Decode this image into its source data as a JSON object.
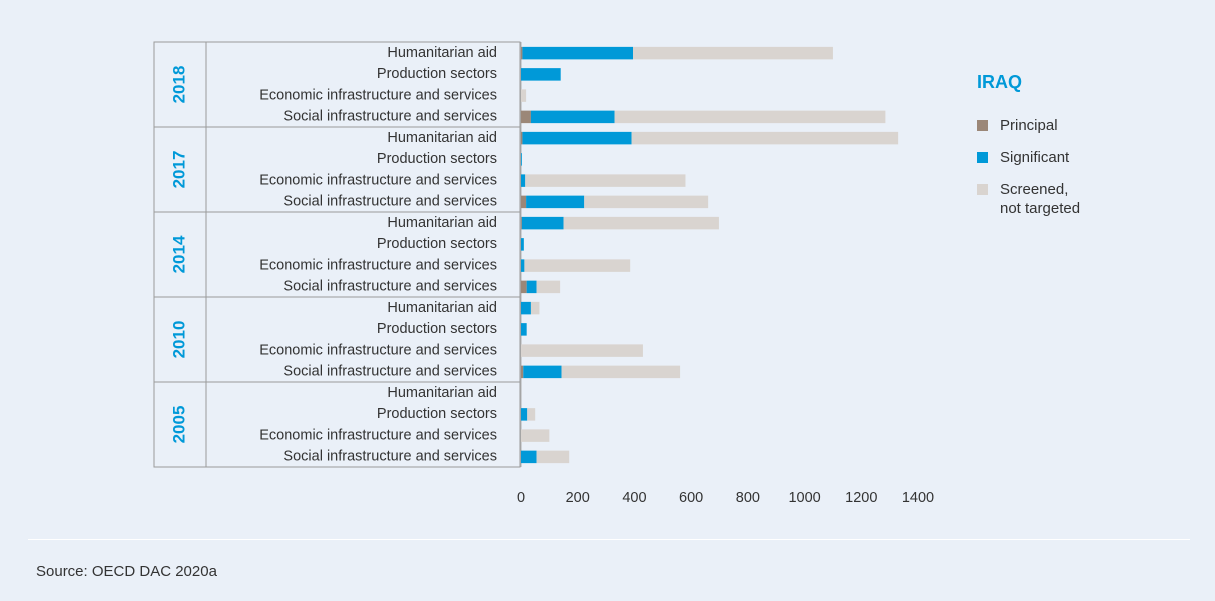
{
  "chart_data": {
    "type": "bar",
    "stacked": true,
    "orientation": "horizontal",
    "title": "IRAQ",
    "xlim": [
      0,
      1400
    ],
    "x_ticks": [
      "0",
      "200",
      "400",
      "600",
      "800",
      "1000",
      "1200",
      "1400"
    ],
    "legend_position": "right",
    "series": [
      {
        "name": "Principal",
        "color": "#9b8778"
      },
      {
        "name": "Significant",
        "color": "#0099d8"
      },
      {
        "name": "Screened,\nnot targeted",
        "color": "#d9d4d0"
      }
    ],
    "groups": [
      {
        "year": "2018",
        "rows": [
          {
            "label": "Humanitarian aid",
            "values": [
              5,
              390,
              705
            ]
          },
          {
            "label": "Production sectors",
            "values": [
              0,
              140,
              0
            ]
          },
          {
            "label": "Economic infrastructure and services",
            "values": [
              0,
              0,
              18
            ]
          },
          {
            "label": "Social infrastructure and services",
            "values": [
              35,
              295,
              955
            ]
          }
        ]
      },
      {
        "year": "2017",
        "rows": [
          {
            "label": "Humanitarian aid",
            "values": [
              5,
              385,
              940
            ]
          },
          {
            "label": "Production sectors",
            "values": [
              0,
              3,
              0
            ]
          },
          {
            "label": "Economic infrastructure and services",
            "values": [
              0,
              15,
              565
            ]
          },
          {
            "label": "Social infrastructure and services",
            "values": [
              18,
              205,
              437
            ]
          }
        ]
      },
      {
        "year": "2014",
        "rows": [
          {
            "label": "Humanitarian aid",
            "values": [
              3,
              147,
              548
            ]
          },
          {
            "label": "Production sectors",
            "values": [
              0,
              10,
              0
            ]
          },
          {
            "label": "Economic infrastructure and services",
            "values": [
              0,
              12,
              373
            ]
          },
          {
            "label": "Social infrastructure and services",
            "values": [
              20,
              35,
              83
            ]
          }
        ]
      },
      {
        "year": "2010",
        "rows": [
          {
            "label": "Humanitarian aid",
            "values": [
              0,
              35,
              30
            ]
          },
          {
            "label": "Production sectors",
            "values": [
              0,
              20,
              0
            ]
          },
          {
            "label": "Economic infrastructure and services",
            "values": [
              0,
              0,
              430
            ]
          },
          {
            "label": "Social infrastructure and services",
            "values": [
              8,
              135,
              418
            ]
          }
        ]
      },
      {
        "year": "2005",
        "rows": [
          {
            "label": "Humanitarian aid",
            "values": [
              0,
              0,
              0
            ]
          },
          {
            "label": "Production sectors",
            "values": [
              0,
              22,
              28
            ]
          },
          {
            "label": "Economic infrastructure and services",
            "values": [
              0,
              0,
              100
            ]
          },
          {
            "label": "Social infrastructure and services",
            "values": [
              0,
              55,
              115
            ]
          }
        ]
      }
    ]
  },
  "source": "Source: OECD DAC 2020a"
}
